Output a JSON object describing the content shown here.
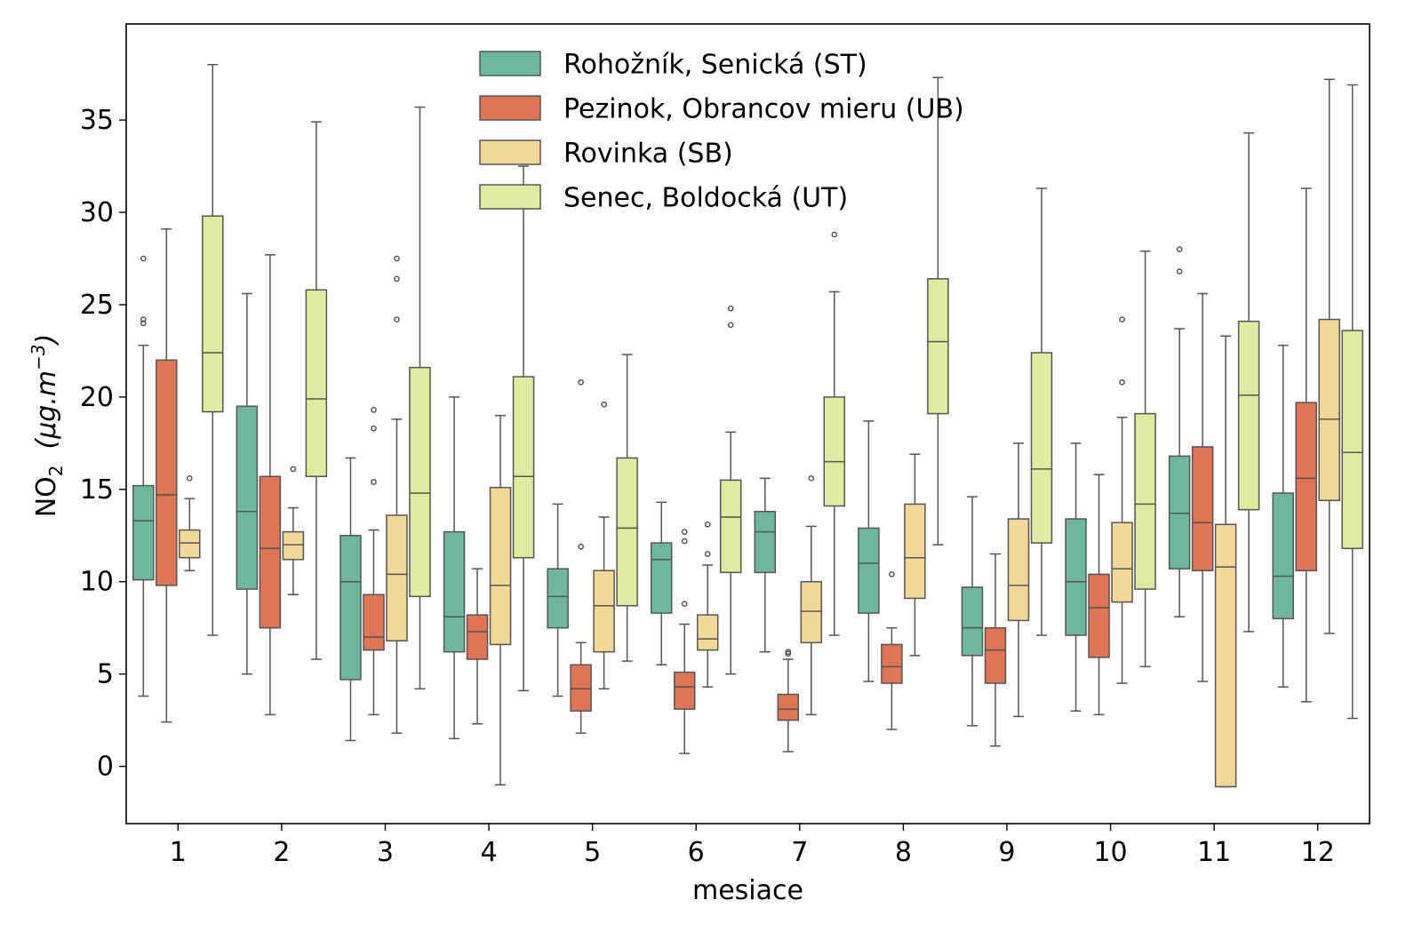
{
  "chart_data": {
    "type": "boxplot",
    "xlabel": "mesiace",
    "ylabel": {
      "main": "NO",
      "sub": "2",
      "unit_text": "(μg.m",
      "unit_sup": "−3",
      "unit_close": ")"
    },
    "categories": [
      "1",
      "2",
      "3",
      "4",
      "5",
      "6",
      "7",
      "8",
      "9",
      "10",
      "11",
      "12"
    ],
    "yticks": [
      0,
      5,
      10,
      15,
      20,
      25,
      30,
      35
    ],
    "ytick_labels": [
      "0",
      "5",
      "10",
      "15",
      "20",
      "25",
      "30",
      "35"
    ],
    "ylim": [
      -3.1,
      40.2
    ],
    "legend_position": "top-center",
    "colors": {
      "edge": "#555555",
      "series": [
        "#6db7a0",
        "#e07555",
        "#f2d896",
        "#dfeb9f"
      ]
    },
    "series": [
      {
        "name": "Rohožník, Senická (ST)",
        "boxes": [
          {
            "whislo": 3.8,
            "q1": 10.1,
            "med": 13.3,
            "q3": 15.2,
            "whishi": 22.8,
            "fliers": [
              27.5,
              24.2,
              24.0
            ]
          },
          {
            "whislo": 5.0,
            "q1": 9.6,
            "med": 13.8,
            "q3": 19.5,
            "whishi": 25.6,
            "fliers": []
          },
          {
            "whislo": 1.4,
            "q1": 4.7,
            "med": 10.0,
            "q3": 12.5,
            "whishi": 16.7,
            "fliers": []
          },
          {
            "whislo": 1.5,
            "q1": 6.2,
            "med": 8.1,
            "q3": 12.7,
            "whishi": 20.0,
            "fliers": []
          },
          {
            "whislo": 3.8,
            "q1": 7.5,
            "med": 9.2,
            "q3": 10.7,
            "whishi": 14.2,
            "fliers": []
          },
          {
            "whislo": 5.5,
            "q1": 8.3,
            "med": 11.2,
            "q3": 12.1,
            "whishi": 14.3,
            "fliers": []
          },
          {
            "whislo": 6.2,
            "q1": 10.5,
            "med": 12.7,
            "q3": 13.8,
            "whishi": 15.6,
            "fliers": []
          },
          {
            "whislo": 4.6,
            "q1": 8.3,
            "med": 11.0,
            "q3": 12.9,
            "whishi": 18.7,
            "fliers": []
          },
          {
            "whislo": 2.2,
            "q1": 6.0,
            "med": 7.5,
            "q3": 9.7,
            "whishi": 14.6,
            "fliers": []
          },
          {
            "whislo": 3.0,
            "q1": 7.1,
            "med": 10.0,
            "q3": 13.4,
            "whishi": 17.5,
            "fliers": []
          },
          {
            "whislo": 8.1,
            "q1": 10.7,
            "med": 13.7,
            "q3": 16.8,
            "whishi": 23.7,
            "fliers": [
              28.0,
              26.8
            ]
          },
          {
            "whislo": 4.3,
            "q1": 8.0,
            "med": 10.3,
            "q3": 14.8,
            "whishi": 22.8,
            "fliers": []
          }
        ]
      },
      {
        "name": "Pezinok, Obrancov mieru (UB)",
        "boxes": [
          {
            "whislo": 2.4,
            "q1": 9.8,
            "med": 14.7,
            "q3": 22.0,
            "whishi": 29.1,
            "fliers": []
          },
          {
            "whislo": 2.8,
            "q1": 7.5,
            "med": 11.8,
            "q3": 15.7,
            "whishi": 27.7,
            "fliers": []
          },
          {
            "whislo": 2.8,
            "q1": 6.3,
            "med": 7.0,
            "q3": 9.3,
            "whishi": 12.8,
            "fliers": [
              19.3,
              18.3,
              15.4
            ]
          },
          {
            "whislo": 2.3,
            "q1": 5.8,
            "med": 7.3,
            "q3": 8.2,
            "whishi": 10.7,
            "fliers": []
          },
          {
            "whislo": 1.8,
            "q1": 3.0,
            "med": 4.2,
            "q3": 5.5,
            "whishi": 6.7,
            "fliers": [
              20.8,
              11.9
            ]
          },
          {
            "whislo": 0.7,
            "q1": 3.1,
            "med": 4.3,
            "q3": 5.1,
            "whishi": 7.7,
            "fliers": [
              12.7,
              12.2,
              8.8
            ]
          },
          {
            "whislo": 0.8,
            "q1": 2.5,
            "med": 3.1,
            "q3": 3.9,
            "whishi": 5.8,
            "fliers": [
              6.2,
              6.1
            ]
          },
          {
            "whislo": 2.0,
            "q1": 4.5,
            "med": 5.4,
            "q3": 6.6,
            "whishi": 7.5,
            "fliers": [
              10.4
            ]
          },
          {
            "whislo": 1.1,
            "q1": 4.5,
            "med": 6.3,
            "q3": 7.5,
            "whishi": 11.5,
            "fliers": []
          },
          {
            "whislo": 2.8,
            "q1": 5.9,
            "med": 8.6,
            "q3": 10.4,
            "whishi": 15.8,
            "fliers": []
          },
          {
            "whislo": 4.6,
            "q1": 10.6,
            "med": 13.2,
            "q3": 17.3,
            "whishi": 25.6,
            "fliers": []
          },
          {
            "whislo": 3.5,
            "q1": 10.6,
            "med": 15.6,
            "q3": 19.7,
            "whishi": 31.3,
            "fliers": []
          }
        ]
      },
      {
        "name": "Rovinka (SB)",
        "boxes": [
          {
            "whislo": 10.6,
            "q1": 11.3,
            "med": 12.1,
            "q3": 12.8,
            "whishi": 14.5,
            "fliers": [
              15.6
            ]
          },
          {
            "whislo": 9.3,
            "q1": 11.2,
            "med": 12.0,
            "q3": 12.7,
            "whishi": 14.0,
            "fliers": [
              16.1
            ]
          },
          {
            "whislo": 1.8,
            "q1": 6.8,
            "med": 10.4,
            "q3": 13.6,
            "whishi": 18.8,
            "fliers": [
              27.5,
              26.4,
              24.2
            ]
          },
          {
            "whislo": -1.0,
            "q1": 6.6,
            "med": 9.8,
            "q3": 15.1,
            "whishi": 19.0,
            "fliers": []
          },
          {
            "whislo": 4.2,
            "q1": 6.2,
            "med": 8.7,
            "q3": 10.6,
            "whishi": 13.5,
            "fliers": [
              19.6
            ]
          },
          {
            "whislo": 4.3,
            "q1": 6.3,
            "med": 6.9,
            "q3": 8.2,
            "whishi": 10.9,
            "fliers": [
              13.1,
              11.5
            ]
          },
          {
            "whislo": 2.8,
            "q1": 6.7,
            "med": 8.4,
            "q3": 10.0,
            "whishi": 13.0,
            "fliers": [
              15.6
            ]
          },
          {
            "whislo": 6.0,
            "q1": 9.1,
            "med": 11.3,
            "q3": 14.2,
            "whishi": 16.9,
            "fliers": []
          },
          {
            "whislo": 2.7,
            "q1": 7.9,
            "med": 9.8,
            "q3": 13.4,
            "whishi": 17.5,
            "fliers": []
          },
          {
            "whislo": 4.5,
            "q1": 8.9,
            "med": 10.7,
            "q3": 13.2,
            "whishi": 18.9,
            "fliers": [
              24.2,
              20.8
            ]
          },
          {
            "whislo": -1.1,
            "q1": -1.1,
            "med": 10.8,
            "q3": 13.1,
            "whishi": 23.3,
            "fliers": []
          },
          {
            "whislo": 7.2,
            "q1": 14.4,
            "med": 18.8,
            "q3": 24.2,
            "whishi": 37.2,
            "fliers": []
          }
        ]
      },
      {
        "name": "Senec, Boldocká (UT)",
        "boxes": [
          {
            "whislo": 7.1,
            "q1": 19.2,
            "med": 22.4,
            "q3": 29.8,
            "whishi": 38.0,
            "fliers": []
          },
          {
            "whislo": 5.8,
            "q1": 15.7,
            "med": 19.9,
            "q3": 25.8,
            "whishi": 34.9,
            "fliers": []
          },
          {
            "whislo": 4.2,
            "q1": 9.2,
            "med": 14.8,
            "q3": 21.6,
            "whishi": 35.7,
            "fliers": []
          },
          {
            "whislo": 4.1,
            "q1": 11.3,
            "med": 15.7,
            "q3": 21.1,
            "whishi": 32.5,
            "fliers": []
          },
          {
            "whislo": 5.7,
            "q1": 8.7,
            "med": 12.9,
            "q3": 16.7,
            "whishi": 22.3,
            "fliers": []
          },
          {
            "whislo": 5.0,
            "q1": 10.5,
            "med": 13.5,
            "q3": 15.5,
            "whishi": 18.1,
            "fliers": [
              24.8,
              23.9
            ]
          },
          {
            "whislo": 7.1,
            "q1": 14.1,
            "med": 16.5,
            "q3": 20.0,
            "whishi": 25.7,
            "fliers": [
              28.8
            ]
          },
          {
            "whislo": 12.0,
            "q1": 19.1,
            "med": 23.0,
            "q3": 26.4,
            "whishi": 37.3,
            "fliers": []
          },
          {
            "whislo": 7.1,
            "q1": 12.1,
            "med": 16.1,
            "q3": 22.4,
            "whishi": 31.3,
            "fliers": []
          },
          {
            "whislo": 5.4,
            "q1": 9.6,
            "med": 14.2,
            "q3": 19.1,
            "whishi": 27.9,
            "fliers": []
          },
          {
            "whislo": 7.3,
            "q1": 13.9,
            "med": 20.1,
            "q3": 24.1,
            "whishi": 34.3,
            "fliers": []
          },
          {
            "whislo": 2.6,
            "q1": 11.8,
            "med": 17.0,
            "q3": 23.6,
            "whishi": 36.9,
            "fliers": []
          }
        ]
      }
    ]
  }
}
